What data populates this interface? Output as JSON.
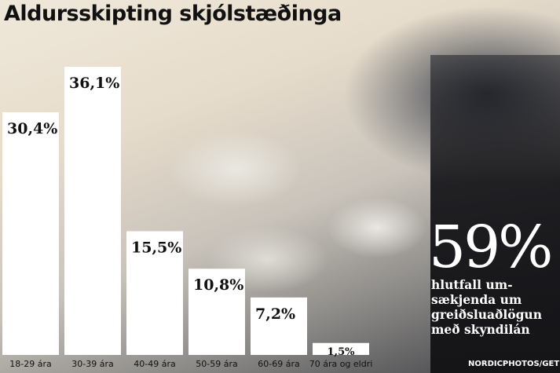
{
  "title": "Aldursskipting skjólstæðinga",
  "chart_data": {
    "type": "bar",
    "title": "Aldursskipting skjólstæðinga",
    "categories": [
      "18-29 ára",
      "30-39 ára",
      "40-49 ára",
      "50-59 ára",
      "60-69 ára",
      "70 ára og eldri"
    ],
    "values": [
      30.4,
      36.1,
      15.5,
      10.8,
      7.2,
      1.5
    ],
    "value_labels": [
      "30,4%",
      "36,1%",
      "15,5%",
      "10,8%",
      "7,2%",
      "1,5%"
    ],
    "xlabel": "",
    "ylabel": "",
    "ylim": [
      0,
      36.1
    ],
    "grid": false,
    "bar_color": "#ffffff"
  },
  "highlight": {
    "value": "59%",
    "caption_lines": [
      "hlutfall um-",
      "sækjenda um",
      "greiðsluaðlögun",
      "með skyndilán"
    ]
  },
  "photo_credit": "NORDICPHOTOS/GET"
}
